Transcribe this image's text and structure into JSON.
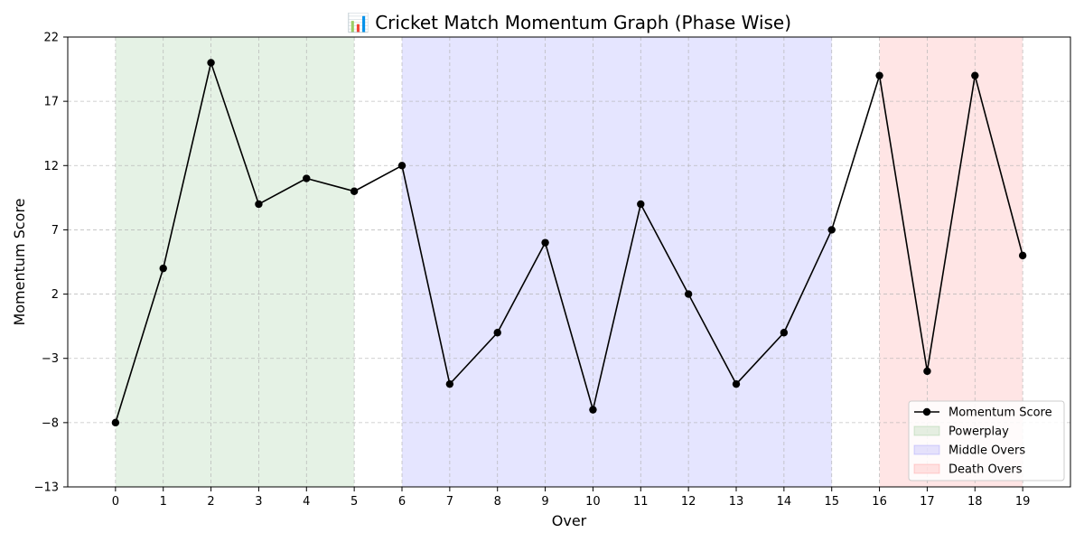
{
  "chart_data": {
    "type": "line",
    "title": "📊 Cricket Match Momentum Graph (Phase Wise)",
    "xlabel": "Over",
    "ylabel": "Momentum Score",
    "x": [
      0,
      1,
      2,
      3,
      4,
      5,
      6,
      7,
      8,
      9,
      10,
      11,
      12,
      13,
      14,
      15,
      16,
      17,
      18,
      19
    ],
    "xlim": [
      -1,
      20
    ],
    "ylim": [
      -13,
      22
    ],
    "yticks": [
      -13,
      -8,
      -3,
      2,
      7,
      12,
      17,
      22
    ],
    "xtick_labels": [
      "0",
      "1",
      "2",
      "3",
      "4",
      "5",
      "6",
      "7",
      "8",
      "9",
      "10",
      "11",
      "12",
      "13",
      "14",
      "15",
      "16",
      "17",
      "18",
      "19"
    ],
    "ytick_labels": [
      "−13",
      "−8",
      "−3",
      "2",
      "7",
      "12",
      "17",
      "22"
    ],
    "grid": true,
    "legend_position": "bottom-right",
    "series": [
      {
        "name": "Momentum Score",
        "color": "#000000",
        "values": [
          -8,
          4,
          20,
          9,
          11,
          10,
          12,
          -5,
          -1,
          6,
          -7,
          9,
          2,
          -5,
          -1,
          7,
          19,
          -4,
          19,
          5
        ]
      }
    ],
    "phases": [
      {
        "name": "Powerplay",
        "start": 0,
        "end": 5,
        "color": "#008000",
        "opacity": 0.1
      },
      {
        "name": "Middle Overs",
        "start": 6,
        "end": 15,
        "color": "#0000ff",
        "opacity": 0.1
      },
      {
        "name": "Death Overs",
        "start": 16,
        "end": 19,
        "color": "#ff0000",
        "opacity": 0.1
      }
    ]
  }
}
